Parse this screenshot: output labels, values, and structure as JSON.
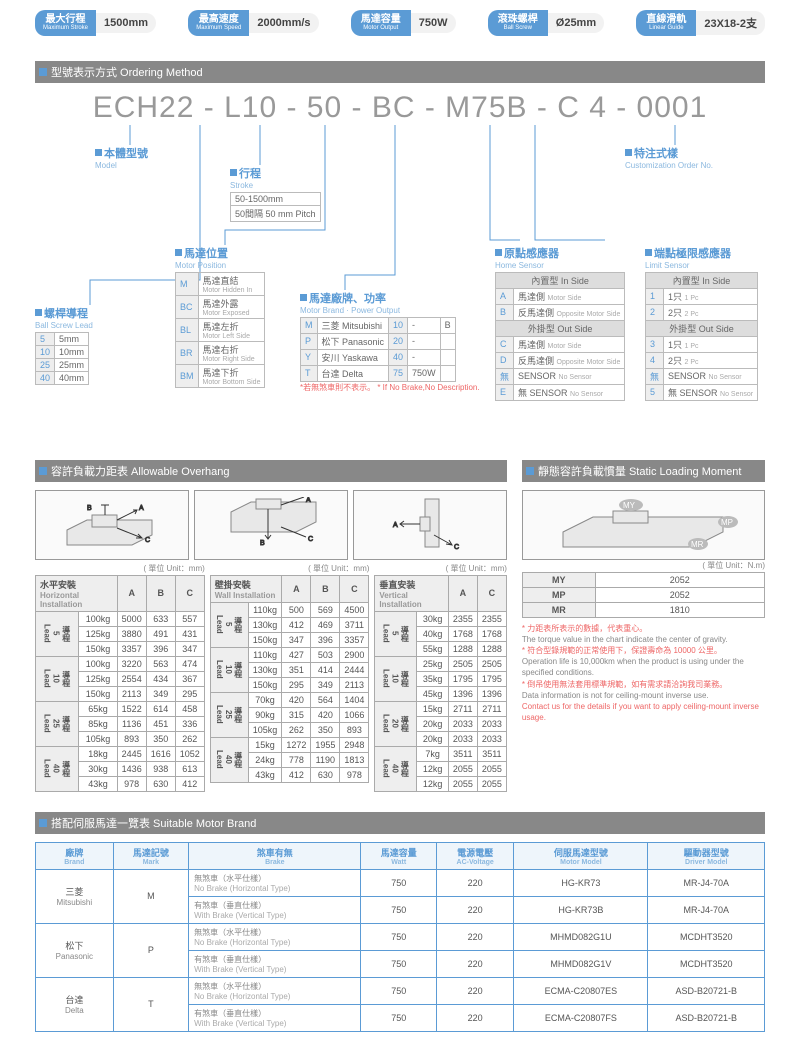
{
  "pills": [
    {
      "zh": "最大行程",
      "en": "Maximum Stroke",
      "val": "1500mm"
    },
    {
      "zh": "最高速度",
      "en": "Maximum Speed",
      "val": "2000mm/s"
    },
    {
      "zh": "馬達容量",
      "en": "Motor Output",
      "val": "750W"
    },
    {
      "zh": "滾珠螺桿",
      "en": "Ball Screw",
      "val": "Ø25mm"
    },
    {
      "zh": "直線滑軌",
      "en": "Linear Guide",
      "val": "23X18-2支"
    }
  ],
  "sec1": {
    "hdr": "型號表示方式 Ordering Method",
    "code": "ECH22 - L10 - 50 - BC - M75B - C 4 - 0001"
  },
  "boxes": {
    "model": {
      "zh": "本體型號",
      "en": "Model"
    },
    "stroke": {
      "zh": "行程",
      "en": "Stroke",
      "rows": [
        [
          "50-1500mm"
        ],
        [
          "50間隔 50 mm Pitch"
        ]
      ]
    },
    "lead": {
      "zh": "螺桿導程",
      "en": "Ball Screw Lead",
      "rows": [
        [
          "5",
          "5mm"
        ],
        [
          "10",
          "10mm"
        ],
        [
          "25",
          "25mm"
        ],
        [
          "40",
          "40mm"
        ]
      ]
    },
    "mpos": {
      "zh": "馬達位置",
      "en": "Motor Position",
      "rows": [
        [
          "M",
          "馬達直結",
          "Motor Hidden In"
        ],
        [
          "BC",
          "馬達外露",
          "Motor Exposed"
        ],
        [
          "BL",
          "馬達左折",
          "Motor Left Side"
        ],
        [
          "BR",
          "馬達右折",
          "Motor Right Side"
        ],
        [
          "BM",
          "馬達下折",
          "Motor Bottom Side"
        ]
      ]
    },
    "brand": {
      "zh": "馬達廠牌、功率",
      "en": "Motor Brand · Power Output",
      "rows": [
        [
          "M",
          "三菱 Mitsubishi",
          "10",
          "-",
          "B"
        ],
        [
          "P",
          "松下 Panasonic",
          "20",
          "-",
          ""
        ],
        [
          "Y",
          "安川 Yaskawa",
          "40",
          "-",
          ""
        ],
        [
          "T",
          "台達 Delta",
          "75",
          "750W",
          ""
        ]
      ],
      "note": "*若無煞車則不表示。 * If No Brake,No Description."
    },
    "home": {
      "zh": "原點感應器",
      "en": "Home Sensor",
      "g1": "內置型 In Side",
      "r1": [
        [
          "A",
          "馬達側",
          "Motor Side"
        ],
        [
          "B",
          "反馬達側",
          "Opposite Motor Side"
        ]
      ],
      "g2": "外掛型 Out Side",
      "r2": [
        [
          "C",
          "馬達側",
          "Motor Side"
        ],
        [
          "D",
          "反馬達側",
          "Opposite Motor Side"
        ],
        [
          "無",
          "SENSOR",
          "No Sensor"
        ]
      ],
      "r3": [
        [
          "E",
          "無 SENSOR",
          "No Sensor"
        ]
      ]
    },
    "limit": {
      "zh": "端點極限感應器",
      "en": "Limit Sensor",
      "g1": "內置型 In Side",
      "r1": [
        [
          "1",
          "1只",
          "1 Pc"
        ],
        [
          "2",
          "2只",
          "2 Pc"
        ]
      ],
      "g2": "外掛型 Out Side",
      "r2": [
        [
          "3",
          "1只",
          "1 Pc"
        ],
        [
          "4",
          "2只",
          "2 Pc"
        ],
        [
          "無",
          "SENSOR",
          "No Sensor"
        ]
      ],
      "r3": [
        [
          "5",
          "無 SENSOR",
          "No Sensor"
        ]
      ]
    },
    "cust": {
      "zh": "特注式樣",
      "en": "Customization Order No."
    }
  },
  "sec2": {
    "hdr": "容許負載力距表 Allowable Overhang"
  },
  "sec2r": {
    "hdr": "靜態容許負載慣量 Static Loading Moment"
  },
  "unit": "( 單位 Unit：mm)",
  "unit2": "( 單位 Unit：N.m)",
  "ov": {
    "h": {
      "zh": "水平安裝",
      "en": "Horizontal Installation",
      "cols": [
        "A",
        "B",
        "C"
      ],
      "groups": [
        {
          "g": "導程\n5\nLead",
          "rows": [
            [
              "100kg",
              "5000",
              "633",
              "557"
            ],
            [
              "125kg",
              "3880",
              "491",
              "431"
            ],
            [
              "150kg",
              "3357",
              "396",
              "347"
            ]
          ]
        },
        {
          "g": "導程\n10\nLead",
          "rows": [
            [
              "100kg",
              "3220",
              "563",
              "474"
            ],
            [
              "125kg",
              "2554",
              "434",
              "367"
            ],
            [
              "150kg",
              "2113",
              "349",
              "295"
            ]
          ]
        },
        {
          "g": "導程\n25\nLead",
          "rows": [
            [
              "65kg",
              "1522",
              "614",
              "458"
            ],
            [
              "85kg",
              "1136",
              "451",
              "336"
            ],
            [
              "105kg",
              "893",
              "350",
              "262"
            ]
          ]
        },
        {
          "g": "導程\n40\nLead",
          "rows": [
            [
              "18kg",
              "2445",
              "1616",
              "1052"
            ],
            [
              "30kg",
              "1436",
              "938",
              "613"
            ],
            [
              "43kg",
              "978",
              "630",
              "412"
            ]
          ]
        }
      ]
    },
    "w": {
      "zh": "壁掛安裝",
      "en": "Wall Installation",
      "cols": [
        "A",
        "B",
        "C"
      ],
      "groups": [
        {
          "g": "導程\n5\nLead",
          "rows": [
            [
              "110kg",
              "500",
              "569",
              "4500"
            ],
            [
              "130kg",
              "412",
              "469",
              "3711"
            ],
            [
              "150kg",
              "347",
              "396",
              "3357"
            ]
          ]
        },
        {
          "g": "導程\n10\nLead",
          "rows": [
            [
              "110kg",
              "427",
              "503",
              "2900"
            ],
            [
              "130kg",
              "351",
              "414",
              "2444"
            ],
            [
              "150kg",
              "295",
              "349",
              "2113"
            ]
          ]
        },
        {
          "g": "導程\n25\nLead",
          "rows": [
            [
              "70kg",
              "420",
              "564",
              "1404"
            ],
            [
              "90kg",
              "315",
              "420",
              "1066"
            ],
            [
              "105kg",
              "262",
              "350",
              "893"
            ]
          ]
        },
        {
          "g": "導程\n40\nLead",
          "rows": [
            [
              "15kg",
              "1272",
              "1955",
              "2948"
            ],
            [
              "24kg",
              "778",
              "1190",
              "1813"
            ],
            [
              "43kg",
              "412",
              "630",
              "978"
            ]
          ]
        }
      ]
    },
    "v": {
      "zh": "垂直安装",
      "en": "Vertical Installation",
      "cols": [
        "A",
        "C"
      ],
      "groups": [
        {
          "g": "導程\n5\nLead",
          "rows": [
            [
              "30kg",
              "2355",
              "2355"
            ],
            [
              "40kg",
              "1768",
              "1768"
            ],
            [
              "55kg",
              "1288",
              "1288"
            ]
          ]
        },
        {
          "g": "導程\n10\nLead",
          "rows": [
            [
              "25kg",
              "2505",
              "2505"
            ],
            [
              "35kg",
              "1795",
              "1795"
            ],
            [
              "45kg",
              "1396",
              "1396"
            ]
          ]
        },
        {
          "g": "導程\n20\nLead",
          "rows": [
            [
              "15kg",
              "2711",
              "2711"
            ],
            [
              "20kg",
              "2033",
              "2033"
            ],
            [
              "20kg",
              "2033",
              "2033"
            ]
          ]
        },
        {
          "g": "導程\n40\nLead",
          "rows": [
            [
              "7kg",
              "3511",
              "3511"
            ],
            [
              "12kg",
              "2055",
              "2055"
            ],
            [
              "12kg",
              "2055",
              "2055"
            ]
          ]
        }
      ]
    }
  },
  "moment": {
    "rows": [
      [
        "MY",
        "2052"
      ],
      [
        "MP",
        "2052"
      ],
      [
        "MR",
        "1810"
      ]
    ]
  },
  "notes": [
    "* 力距表所表示的數據，代表重心。",
    "The torque value in the chart indicate the center of gravity.",
    "* 符合型錄規範的正常使用下，保證壽命為 10000 公里。",
    "Operation life is 10,000km when the product is using under the specified conditions.",
    "* 倒吊使用無法套用標準規範，如有需求請洽詢我司業務。",
    "Data information is not for ceiling-mount inverse use.",
    "Contact us for the details if you want to apply ceiling-mount inverse usage."
  ],
  "sec3": {
    "hdr": "搭配伺服馬達一覽表 Suitable Motor Brand"
  },
  "motor": {
    "cols": [
      [
        "廠牌",
        "Brand"
      ],
      [
        "馬達記號",
        "Mark"
      ],
      [
        "煞車有無",
        "Brake"
      ],
      [
        "馬達容量",
        "Watt"
      ],
      [
        "電源電壓",
        "AC-Voltage"
      ],
      [
        "伺服馬達型號",
        "Motor Model"
      ],
      [
        "驅動器型號",
        "Driver Model"
      ]
    ],
    "groups": [
      {
        "brand": [
          "三菱",
          "Mitsubishi"
        ],
        "mark": "M",
        "rows": [
          [
            "無煞車（水平仕樣）",
            "No Brake (Horizontal Type)",
            "750",
            "220",
            "HG-KR73",
            "MR-J4-70A"
          ],
          [
            "有煞車（垂直仕樣）",
            "With Brake (Vertical Type)",
            "750",
            "220",
            "HG-KR73B",
            "MR-J4-70A"
          ]
        ]
      },
      {
        "brand": [
          "松下",
          "Panasonic"
        ],
        "mark": "P",
        "rows": [
          [
            "無煞車（水平仕樣）",
            "No Brake (Horizontal Type)",
            "750",
            "220",
            "MHMD082G1U",
            "MCDHT3520"
          ],
          [
            "有煞車（垂直仕樣）",
            "With Brake (Vertical Type)",
            "750",
            "220",
            "MHMD082G1V",
            "MCDHT3520"
          ]
        ]
      },
      {
        "brand": [
          "台達",
          "Delta"
        ],
        "mark": "T",
        "rows": [
          [
            "無煞車（水平仕樣）",
            "No Brake (Horizontal Type)",
            "750",
            "220",
            "ECMA-C20807ES",
            "ASD-B20721-B"
          ],
          [
            "有煞車（垂直仕樣）",
            "With Brake (Vertical Type)",
            "750",
            "220",
            "ECMA-C20807FS",
            "ASD-B20721-B"
          ]
        ]
      }
    ]
  }
}
